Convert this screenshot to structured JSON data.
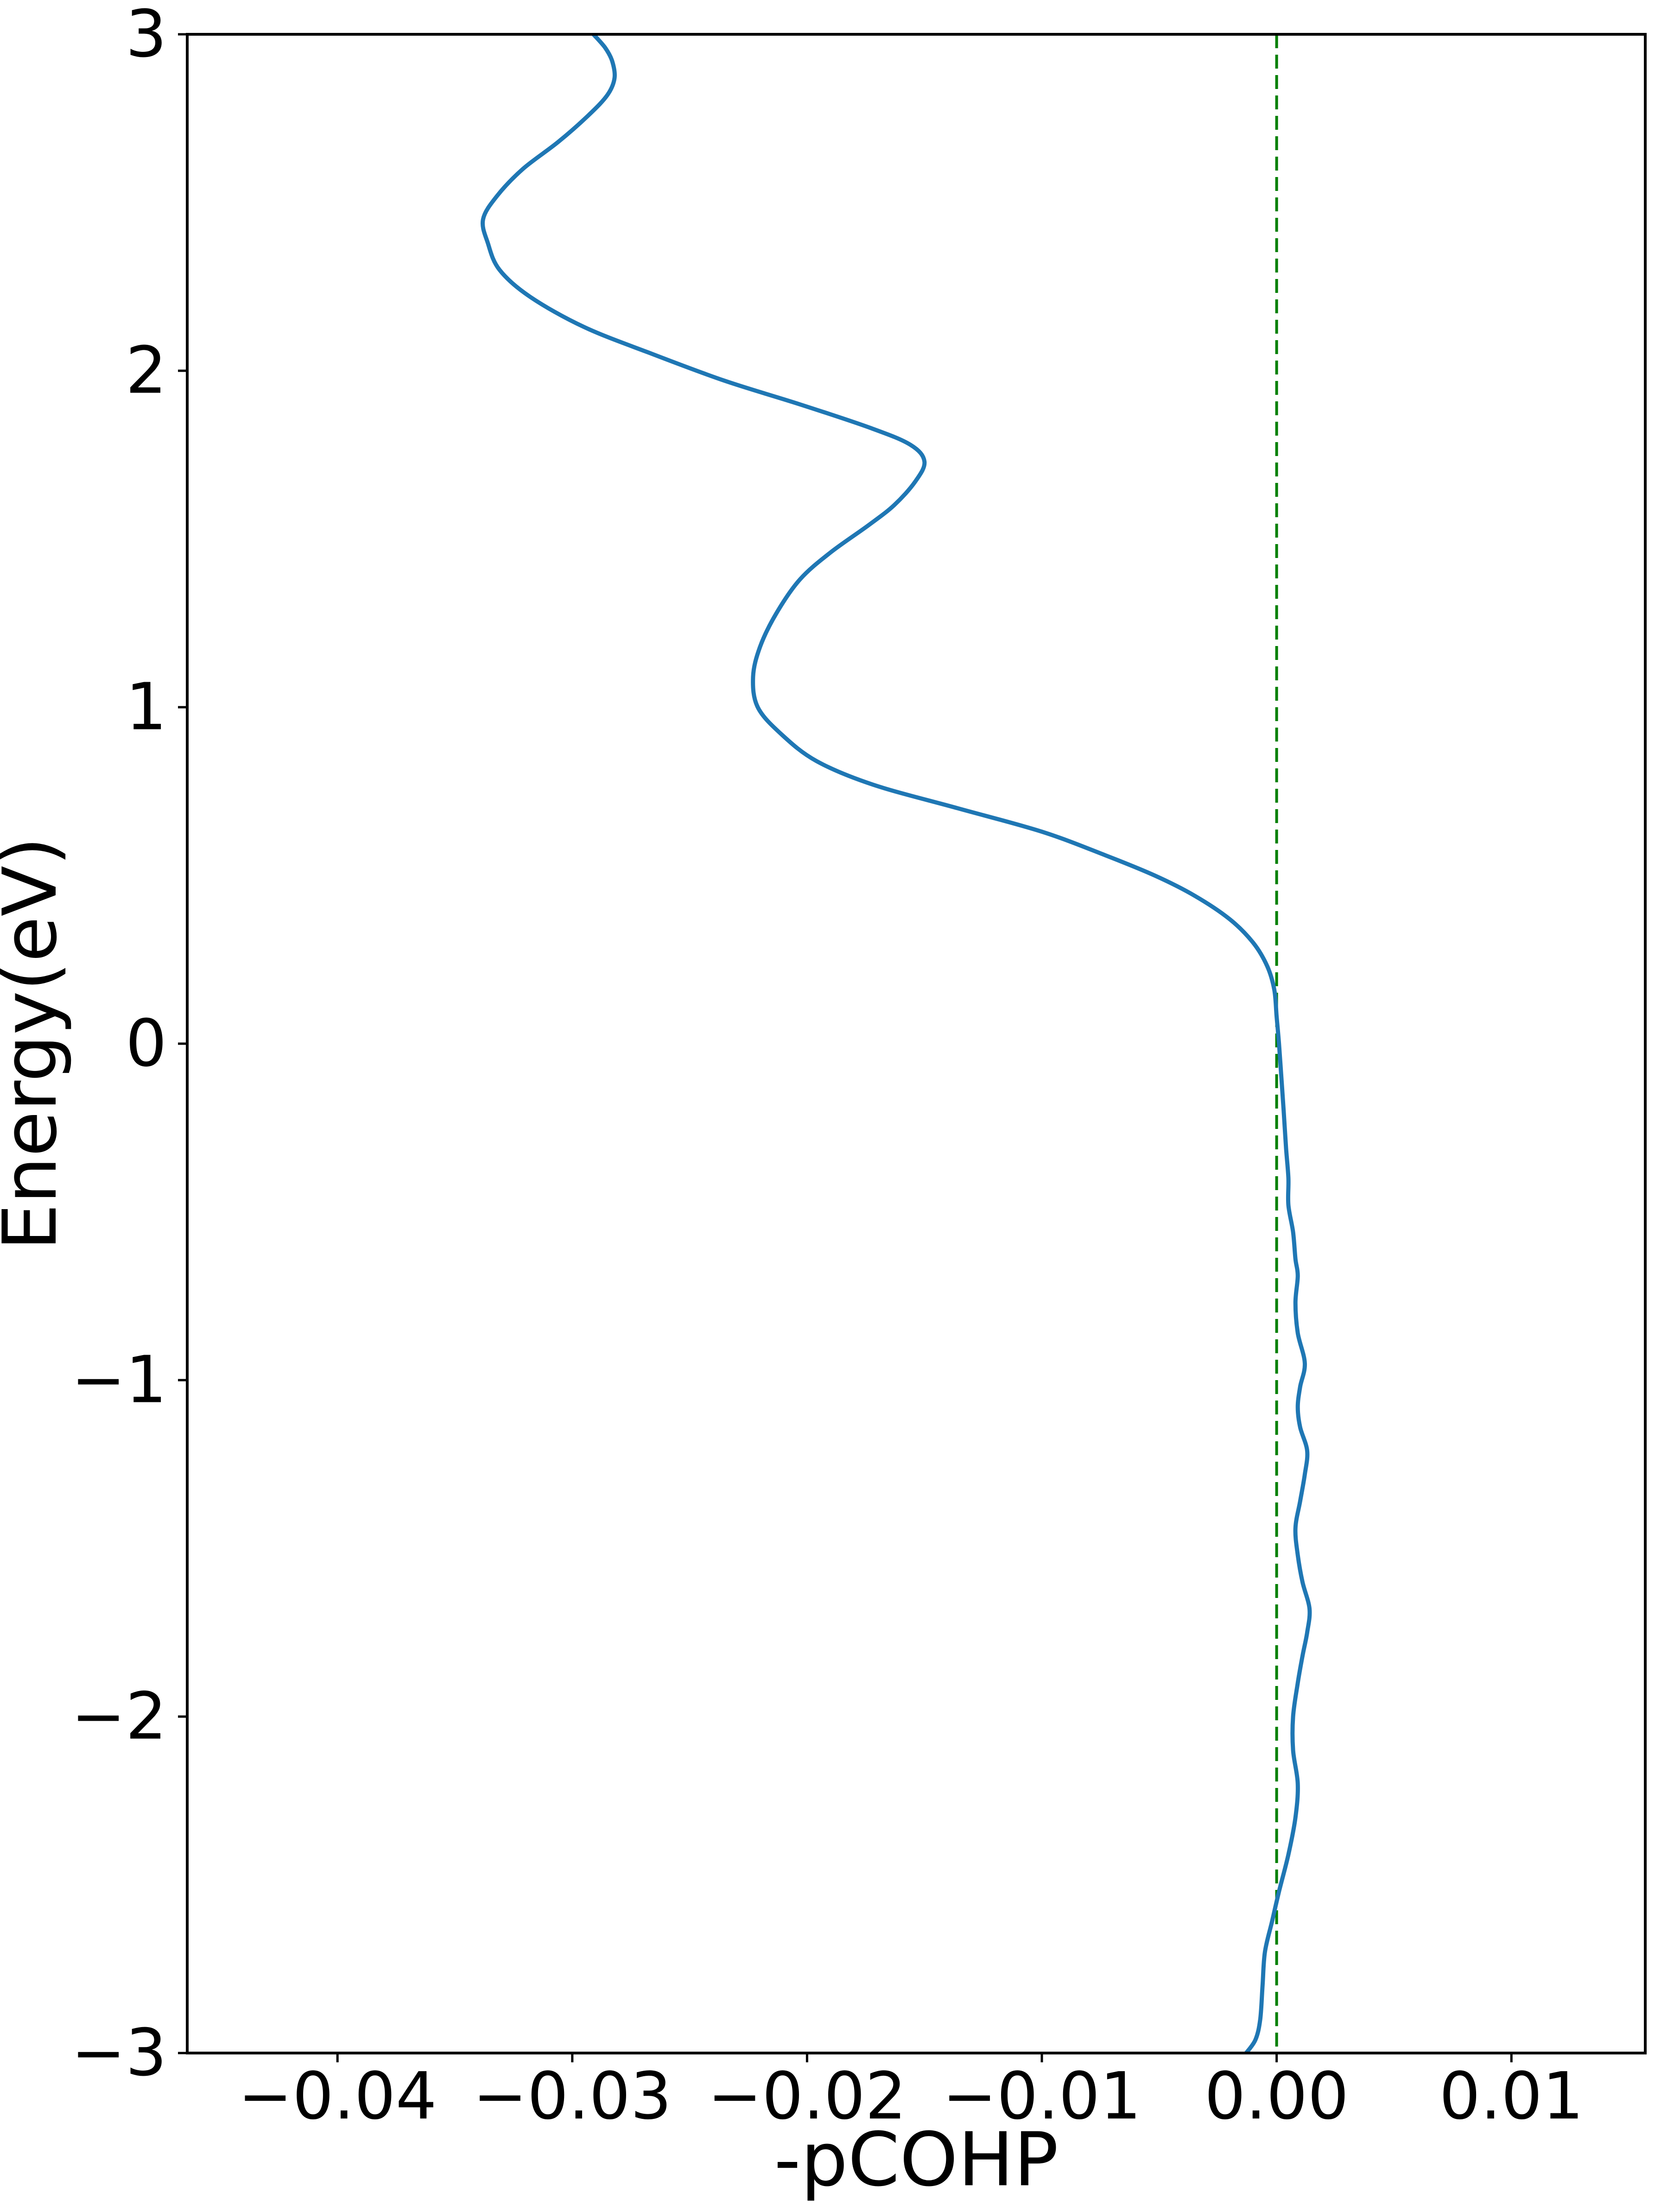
{
  "figure": {
    "background": "#ffffff",
    "border_color": "#000000"
  },
  "chart_data": {
    "type": "line",
    "title": "",
    "xlabel": "-pCOHP",
    "ylabel": "Energy(eV)",
    "xlim": [
      -0.0464,
      0.0157
    ],
    "ylim": [
      -3,
      3
    ],
    "grid": false,
    "legend": null,
    "x_ticks": [
      {
        "value": -0.04,
        "label": "−0.04"
      },
      {
        "value": -0.03,
        "label": "−0.03"
      },
      {
        "value": -0.02,
        "label": "−0.02"
      },
      {
        "value": -0.01,
        "label": "−0.01"
      },
      {
        "value": 0.0,
        "label": "0.00"
      },
      {
        "value": 0.01,
        "label": "0.01"
      }
    ],
    "y_ticks": [
      {
        "value": 3,
        "label": "3"
      },
      {
        "value": 2,
        "label": "2"
      },
      {
        "value": 1,
        "label": "1"
      },
      {
        "value": 0,
        "label": "0"
      },
      {
        "value": -1,
        "label": "−1"
      },
      {
        "value": -2,
        "label": "−2"
      },
      {
        "value": -3,
        "label": "−3"
      }
    ],
    "zero_line": {
      "x": 0.0,
      "color": "#008000",
      "style": "dashed"
    },
    "series": [
      {
        "name": "-pCOHP curve",
        "color": "#1f77b4",
        "points": [
          [
            3.0,
            -0.0291
          ],
          [
            2.96,
            -0.0286
          ],
          [
            2.92,
            -0.0283
          ],
          [
            2.87,
            -0.0282
          ],
          [
            2.82,
            -0.0285
          ],
          [
            2.76,
            -0.0293
          ],
          [
            2.68,
            -0.0306
          ],
          [
            2.6,
            -0.0321
          ],
          [
            2.52,
            -0.0332
          ],
          [
            2.45,
            -0.0338
          ],
          [
            2.38,
            -0.0336
          ],
          [
            2.3,
            -0.0331
          ],
          [
            2.22,
            -0.0318
          ],
          [
            2.13,
            -0.0295
          ],
          [
            2.05,
            -0.0266
          ],
          [
            1.97,
            -0.0235
          ],
          [
            1.9,
            -0.0203
          ],
          [
            1.83,
            -0.0173
          ],
          [
            1.78,
            -0.0156
          ],
          [
            1.73,
            -0.015
          ],
          [
            1.67,
            -0.0154
          ],
          [
            1.6,
            -0.0163
          ],
          [
            1.54,
            -0.0174
          ],
          [
            1.46,
            -0.019
          ],
          [
            1.38,
            -0.0203
          ],
          [
            1.28,
            -0.0213
          ],
          [
            1.18,
            -0.022
          ],
          [
            1.09,
            -0.0223
          ],
          [
            1.0,
            -0.0221
          ],
          [
            0.92,
            -0.0211
          ],
          [
            0.84,
            -0.0196
          ],
          [
            0.77,
            -0.0172
          ],
          [
            0.7,
            -0.0136
          ],
          [
            0.63,
            -0.01
          ],
          [
            0.56,
            -0.0073
          ],
          [
            0.5,
            -0.0052
          ],
          [
            0.44,
            -0.0035
          ],
          [
            0.37,
            -0.002
          ],
          [
            0.3,
            -0.001
          ],
          [
            0.23,
            -0.0004
          ],
          [
            0.16,
            -0.0001
          ],
          [
            0.08,
            0.0
          ],
          [
            0.0,
            0.0001
          ],
          [
            -0.1,
            0.0002
          ],
          [
            -0.2,
            0.0003
          ],
          [
            -0.31,
            0.0004
          ],
          [
            -0.4,
            0.0005
          ],
          [
            -0.48,
            0.0005
          ],
          [
            -0.56,
            0.0007
          ],
          [
            -0.64,
            0.0008
          ],
          [
            -0.69,
            0.0009
          ],
          [
            -0.77,
            0.0008
          ],
          [
            -0.86,
            0.0009
          ],
          [
            -0.95,
            0.0012
          ],
          [
            -1.02,
            0.001
          ],
          [
            -1.08,
            0.0009
          ],
          [
            -1.14,
            0.001
          ],
          [
            -1.21,
            0.0013
          ],
          [
            -1.28,
            0.0012
          ],
          [
            -1.36,
            0.001
          ],
          [
            -1.44,
            0.0008
          ],
          [
            -1.52,
            0.0009
          ],
          [
            -1.6,
            0.0011
          ],
          [
            -1.68,
            0.0014
          ],
          [
            -1.75,
            0.0013
          ],
          [
            -1.82,
            0.0011
          ],
          [
            -1.9,
            0.0009
          ],
          [
            -2.0,
            0.0007
          ],
          [
            -2.1,
            0.0007
          ],
          [
            -2.2,
            0.0009
          ],
          [
            -2.3,
            0.0008
          ],
          [
            -2.41,
            0.0005
          ],
          [
            -2.52,
            0.0001
          ],
          [
            -2.61,
            -0.0002
          ],
          [
            -2.7,
            -0.0005
          ],
          [
            -2.8,
            -0.0006
          ],
          [
            -2.9,
            -0.0007
          ],
          [
            -2.96,
            -0.0009
          ],
          [
            -3.0,
            -0.0013
          ]
        ]
      }
    ]
  }
}
